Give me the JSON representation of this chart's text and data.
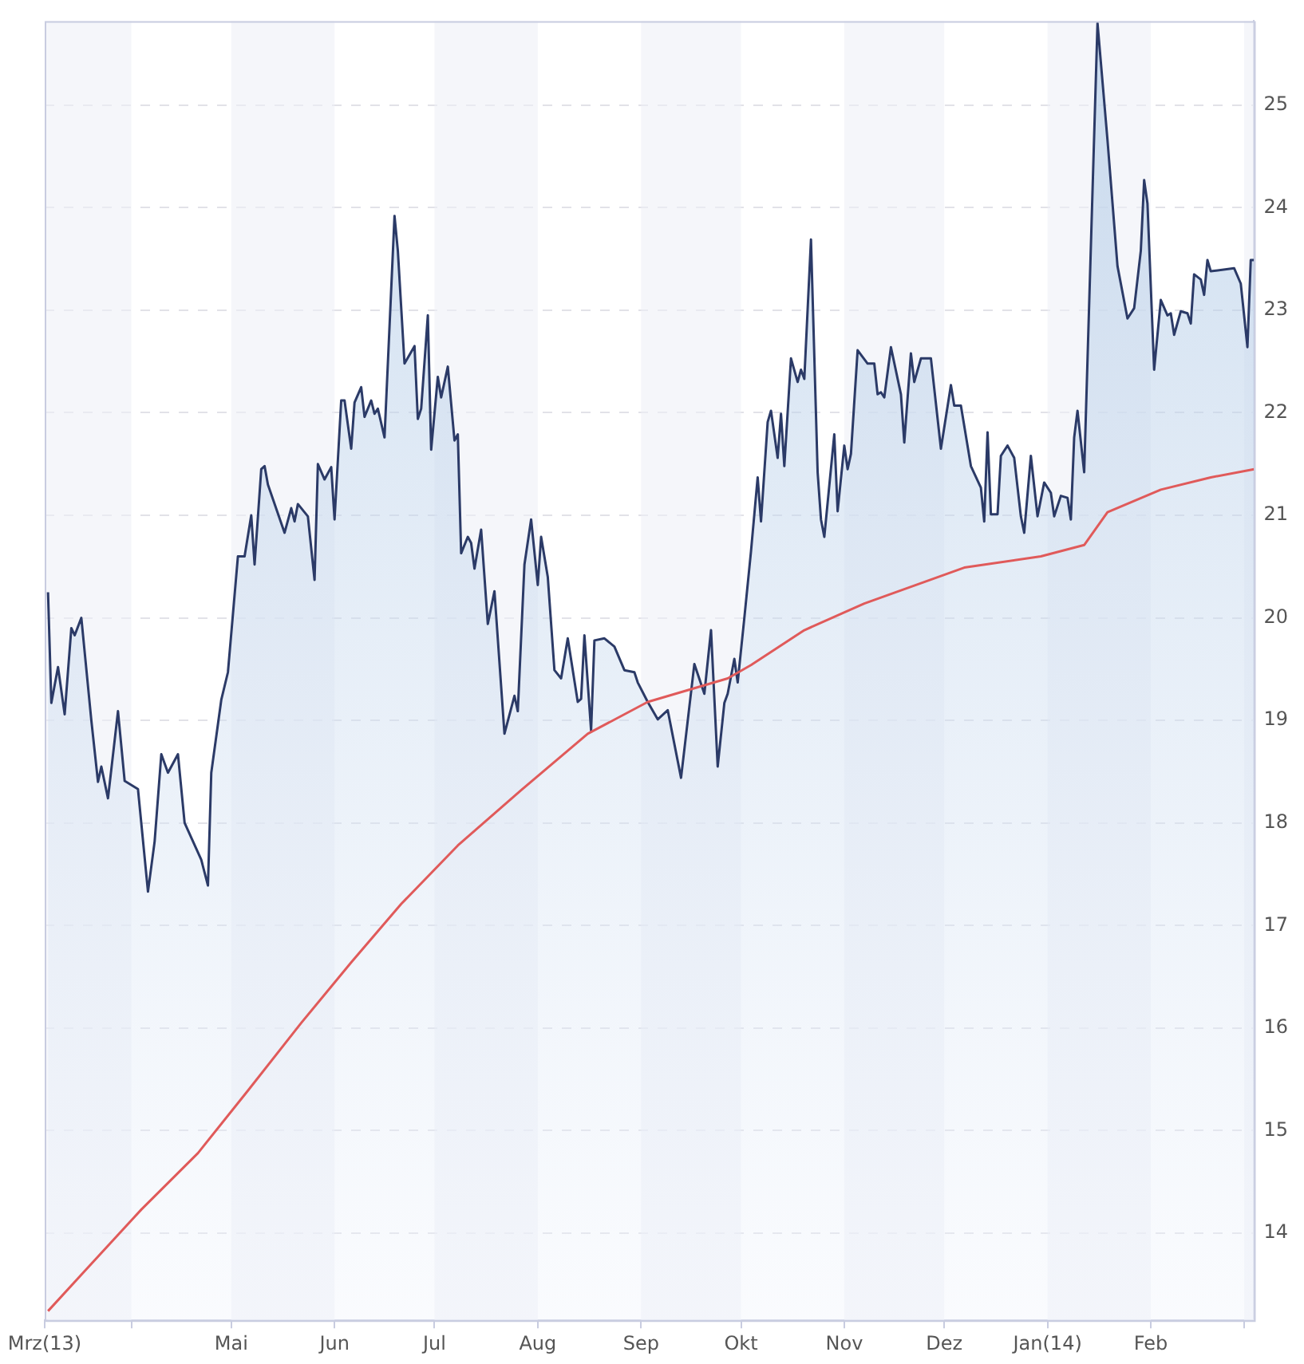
{
  "chart_data": {
    "type": "area",
    "grid": "y",
    "legend": false,
    "marker": "none",
    "xlim": [
      "2013-03-06",
      "2014-03-04"
    ],
    "xticks": [
      {
        "value": "2013-03-06",
        "label": "Mrz(13)"
      },
      {
        "value": "2013-04-01",
        "label": null
      },
      {
        "value": "2013-05-01",
        "label": "Mai"
      },
      {
        "value": "2013-06-01",
        "label": "Jun"
      },
      {
        "value": "2013-07-01",
        "label": "Jul"
      },
      {
        "value": "2013-08-01",
        "label": "Aug"
      },
      {
        "value": "2013-09-01",
        "label": "Sep"
      },
      {
        "value": "2013-10-01",
        "label": "Okt"
      },
      {
        "value": "2013-11-01",
        "label": "Nov"
      },
      {
        "value": "2013-12-01",
        "label": "Dez"
      },
      {
        "value": "2014-01-01",
        "label": "Jan(14)"
      },
      {
        "value": "2014-02-01",
        "label": "Feb"
      },
      {
        "value": "2014-03-01",
        "label": null
      }
    ],
    "ylim": [
      13.15,
      25.82
    ],
    "yticks": [
      14,
      15,
      16,
      17,
      18,
      19,
      20,
      21,
      22,
      23,
      24,
      25
    ],
    "series": [
      {
        "color": "#2b3a67",
        "x": [
          "2013-03-07",
          "2013-03-08",
          "2013-03-10",
          "2013-03-12",
          "2013-03-14",
          "2013-03-15",
          "2013-03-17",
          "2013-03-20",
          "2013-03-22",
          "2013-03-23",
          "2013-03-25",
          "2013-03-28",
          "2013-03-30",
          "2013-04-03",
          "2013-04-06",
          "2013-04-08",
          "2013-04-10",
          "2013-04-12",
          "2013-04-15",
          "2013-04-17",
          "2013-04-22",
          "2013-04-24",
          "2013-04-25",
          "2013-04-28",
          "2013-04-30",
          "2013-05-03",
          "2013-05-05",
          "2013-05-07",
          "2013-05-08",
          "2013-05-10",
          "2013-05-11",
          "2013-05-12",
          "2013-05-17",
          "2013-05-19",
          "2013-05-20",
          "2013-05-21",
          "2013-05-24",
          "2013-05-26",
          "2013-05-27",
          "2013-05-29",
          "2013-05-31",
          "2013-06-01",
          "2013-06-03",
          "2013-06-04",
          "2013-06-06",
          "2013-06-07",
          "2013-06-09",
          "2013-06-10",
          "2013-06-12",
          "2013-06-13",
          "2013-06-14",
          "2013-06-16",
          "2013-06-19",
          "2013-06-20",
          "2013-06-22",
          "2013-06-25",
          "2013-06-26",
          "2013-06-27",
          "2013-06-29",
          "2013-06-30",
          "2013-07-02",
          "2013-07-03",
          "2013-07-05",
          "2013-07-07",
          "2013-07-08",
          "2013-07-09",
          "2013-07-11",
          "2013-07-12",
          "2013-07-13",
          "2013-07-15",
          "2013-07-17",
          "2013-07-19",
          "2013-07-22",
          "2013-07-25",
          "2013-07-26",
          "2013-07-28",
          "2013-07-30",
          "2013-08-01",
          "2013-08-02",
          "2013-08-04",
          "2013-08-06",
          "2013-08-08",
          "2013-08-10",
          "2013-08-13",
          "2013-08-14",
          "2013-08-15",
          "2013-08-17",
          "2013-08-18",
          "2013-08-21",
          "2013-08-24",
          "2013-08-27",
          "2013-08-30",
          "2013-08-31",
          "2013-09-03",
          "2013-09-06",
          "2013-09-09",
          "2013-09-13",
          "2013-09-17",
          "2013-09-20",
          "2013-09-22",
          "2013-09-24",
          "2013-09-26",
          "2013-09-27",
          "2013-09-29",
          "2013-09-30",
          "2013-10-02",
          "2013-10-04",
          "2013-10-06",
          "2013-10-07",
          "2013-10-09",
          "2013-10-10",
          "2013-10-12",
          "2013-10-13",
          "2013-10-14",
          "2013-10-16",
          "2013-10-18",
          "2013-10-19",
          "2013-10-20",
          "2013-10-22",
          "2013-10-24",
          "2013-10-25",
          "2013-10-26",
          "2013-10-29",
          "2013-10-30",
          "2013-11-01",
          "2013-11-02",
          "2013-11-03",
          "2013-11-05",
          "2013-11-08",
          "2013-11-10",
          "2013-11-11",
          "2013-11-12",
          "2013-11-13",
          "2013-11-15",
          "2013-11-18",
          "2013-11-19",
          "2013-11-21",
          "2013-11-22",
          "2013-11-24",
          "2013-11-27",
          "2013-11-30",
          "2013-12-03",
          "2013-12-04",
          "2013-12-06",
          "2013-12-09",
          "2013-12-12",
          "2013-12-13",
          "2013-12-14",
          "2013-12-15",
          "2013-12-17",
          "2013-12-18",
          "2013-12-20",
          "2013-12-22",
          "2013-12-24",
          "2013-12-25",
          "2013-12-27",
          "2013-12-29",
          "2013-12-31",
          "2014-01-02",
          "2014-01-03",
          "2014-01-05",
          "2014-01-07",
          "2014-01-08",
          "2014-01-09",
          "2014-01-10",
          "2014-01-12",
          "2014-01-16",
          "2014-01-19",
          "2014-01-22",
          "2014-01-25",
          "2014-01-27",
          "2014-01-29",
          "2014-01-30",
          "2014-01-31",
          "2014-02-02",
          "2014-02-04",
          "2014-02-06",
          "2014-02-07",
          "2014-02-08",
          "2014-02-10",
          "2014-02-12",
          "2014-02-13",
          "2014-02-14",
          "2014-02-16",
          "2014-02-17",
          "2014-02-18",
          "2014-02-19",
          "2014-02-26",
          "2014-02-28",
          "2014-03-02",
          "2014-03-03",
          "2014-03-04"
        ],
        "values": [
          20.25,
          19.17,
          19.52,
          19.06,
          19.9,
          19.83,
          20.0,
          19.0,
          18.4,
          18.55,
          18.24,
          19.09,
          18.41,
          18.33,
          17.33,
          17.82,
          18.67,
          18.49,
          18.67,
          18.0,
          17.64,
          17.39,
          18.49,
          19.2,
          19.47,
          20.6,
          20.6,
          21.0,
          20.52,
          21.45,
          21.48,
          21.3,
          20.83,
          21.07,
          20.94,
          21.11,
          20.99,
          20.37,
          21.5,
          21.35,
          21.47,
          20.96,
          22.12,
          22.12,
          21.65,
          22.1,
          22.25,
          21.96,
          22.12,
          21.99,
          22.04,
          21.76,
          23.92,
          23.58,
          22.48,
          22.65,
          21.94,
          22.04,
          22.95,
          21.64,
          22.35,
          22.15,
          22.45,
          21.73,
          21.79,
          20.63,
          20.79,
          20.73,
          20.48,
          20.86,
          19.94,
          20.26,
          18.87,
          19.24,
          19.09,
          20.52,
          20.96,
          20.32,
          20.79,
          20.4,
          19.49,
          19.41,
          19.8,
          19.18,
          19.21,
          19.83,
          18.9,
          19.78,
          19.8,
          19.72,
          19.49,
          19.47,
          19.37,
          19.18,
          19.01,
          19.1,
          18.44,
          19.55,
          19.26,
          19.88,
          18.55,
          19.17,
          19.26,
          19.6,
          19.37,
          20.0,
          20.65,
          21.37,
          20.94,
          21.91,
          22.02,
          21.56,
          21.99,
          21.48,
          22.53,
          22.3,
          22.42,
          22.33,
          23.69,
          21.42,
          20.96,
          20.79,
          21.79,
          21.04,
          21.68,
          21.45,
          21.6,
          22.61,
          22.48,
          22.48,
          22.18,
          22.2,
          22.15,
          22.64,
          22.18,
          21.71,
          22.58,
          22.3,
          22.53,
          22.53,
          21.65,
          22.27,
          22.07,
          22.07,
          21.48,
          21.27,
          20.94,
          21.81,
          21.01,
          21.01,
          21.58,
          21.68,
          21.56,
          20.99,
          20.83,
          21.58,
          20.99,
          21.32,
          21.22,
          20.99,
          21.19,
          21.17,
          20.96,
          21.76,
          22.02,
          21.42,
          25.8,
          24.66,
          23.43,
          22.92,
          23.02,
          23.58,
          24.27,
          24.04,
          22.42,
          23.1,
          22.95,
          22.97,
          22.76,
          22.99,
          22.97,
          22.87,
          23.35,
          23.3,
          23.15,
          23.49,
          23.38,
          23.41,
          23.26,
          22.64,
          23.49,
          23.49
        ]
      },
      {
        "type": "line",
        "color": "#e05a5a",
        "x": [
          "2013-03-07",
          "2013-03-18",
          "2013-04-04",
          "2013-04-21",
          "2013-05-06",
          "2013-05-22",
          "2013-06-06",
          "2013-06-21",
          "2013-07-08",
          "2013-07-27",
          "2013-08-16",
          "2013-09-03",
          "2013-09-27",
          "2013-10-04",
          "2013-10-20",
          "2013-11-07",
          "2013-12-07",
          "2013-12-30",
          "2014-01-12",
          "2014-01-19",
          "2014-02-04",
          "2014-02-19",
          "2014-03-04"
        ],
        "values": [
          13.24,
          13.63,
          14.23,
          14.78,
          15.39,
          16.05,
          16.64,
          17.21,
          17.78,
          18.32,
          18.87,
          19.18,
          19.41,
          19.54,
          19.88,
          20.14,
          20.49,
          20.6,
          20.71,
          21.03,
          21.25,
          21.37,
          21.45
        ]
      }
    ]
  }
}
